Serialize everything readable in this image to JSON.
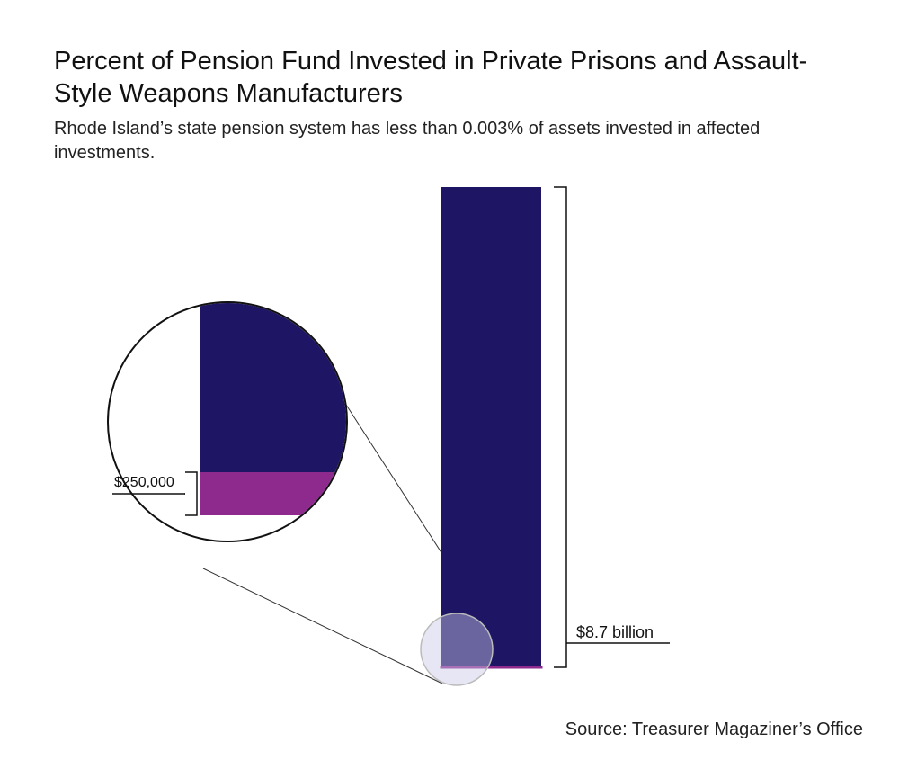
{
  "chart_data": {
    "type": "bar",
    "title": "Percent of Pension Fund Invested in Private Prisons and Assault-Style Weapons Manufacturers",
    "subtitle": "Rhode Island’s state pension system has less than 0.003% of assets invested in affected investments.",
    "source": "Source: Treasurer Magaziner’s Office",
    "total": {
      "value": 8700000000,
      "label": "$8.7 billion",
      "color": "#1e1565"
    },
    "invested": {
      "value": 250000,
      "label": "$250,000",
      "color": "#8e2a8e"
    }
  }
}
